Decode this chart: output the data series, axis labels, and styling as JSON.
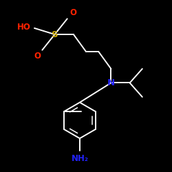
{
  "bg_color": "#000000",
  "bond_color": "#ffffff",
  "bond_lw": 1.4,
  "N_color": "#2222ff",
  "O_color": "#ff2200",
  "S_color": "#ccaa00",
  "NH2_color": "#2222ff",
  "HO_color": "#ff2200",
  "figsize": [
    2.5,
    2.5
  ],
  "dpi": 100,
  "xlim": [
    -0.05,
    1.05
  ],
  "ylim": [
    -0.02,
    1.02
  ]
}
